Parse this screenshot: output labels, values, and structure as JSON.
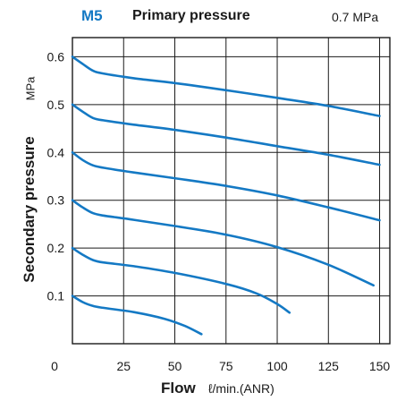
{
  "header": {
    "model": "M5",
    "primary_title": "Primary pressure",
    "primary_value": "0.7 MPa"
  },
  "colors": {
    "curve": "#1479c4",
    "model": "#1479c4",
    "grid": "#1a1a1a"
  },
  "chart_data": {
    "type": "line",
    "title": "Primary pressure",
    "xlabel": "Flow",
    "xunit": "ℓ/min.(ANR)",
    "ylabel": "Secondary pressure",
    "yunit": "MPa",
    "xlim": [
      0,
      155
    ],
    "ylim": [
      0,
      0.64
    ],
    "x_ticks": [
      0,
      25,
      50,
      75,
      100,
      125,
      150
    ],
    "y_ticks": [
      0.1,
      0.2,
      0.3,
      0.4,
      0.5,
      0.6
    ],
    "grid": true,
    "series": [
      {
        "set_pressure": 0.6,
        "x": [
          0,
          5,
          10,
          15,
          30,
          50,
          75,
          100,
          125,
          150
        ],
        "y": [
          0.6,
          0.585,
          0.571,
          0.565,
          0.555,
          0.545,
          0.53,
          0.514,
          0.497,
          0.476
        ]
      },
      {
        "set_pressure": 0.5,
        "x": [
          0,
          5,
          10,
          15,
          30,
          50,
          75,
          100,
          125,
          150
        ],
        "y": [
          0.5,
          0.485,
          0.472,
          0.467,
          0.458,
          0.447,
          0.431,
          0.413,
          0.395,
          0.374
        ]
      },
      {
        "set_pressure": 0.4,
        "x": [
          0,
          5,
          10,
          15,
          30,
          50,
          75,
          100,
          125,
          150
        ],
        "y": [
          0.4,
          0.384,
          0.373,
          0.368,
          0.358,
          0.346,
          0.33,
          0.31,
          0.285,
          0.258
        ]
      },
      {
        "set_pressure": 0.3,
        "x": [
          0,
          5,
          10,
          15,
          30,
          50,
          75,
          100,
          125,
          147
        ],
        "y": [
          0.3,
          0.285,
          0.273,
          0.268,
          0.259,
          0.246,
          0.228,
          0.202,
          0.165,
          0.122
        ]
      },
      {
        "set_pressure": 0.2,
        "x": [
          0,
          5,
          10,
          15,
          30,
          50,
          75,
          90,
          100,
          106
        ],
        "y": [
          0.2,
          0.186,
          0.175,
          0.17,
          0.162,
          0.148,
          0.125,
          0.105,
          0.083,
          0.065
        ]
      },
      {
        "set_pressure": 0.1,
        "x": [
          0,
          5,
          10,
          15,
          30,
          45,
          55,
          63
        ],
        "y": [
          0.1,
          0.087,
          0.079,
          0.075,
          0.066,
          0.052,
          0.037,
          0.02
        ]
      }
    ]
  }
}
